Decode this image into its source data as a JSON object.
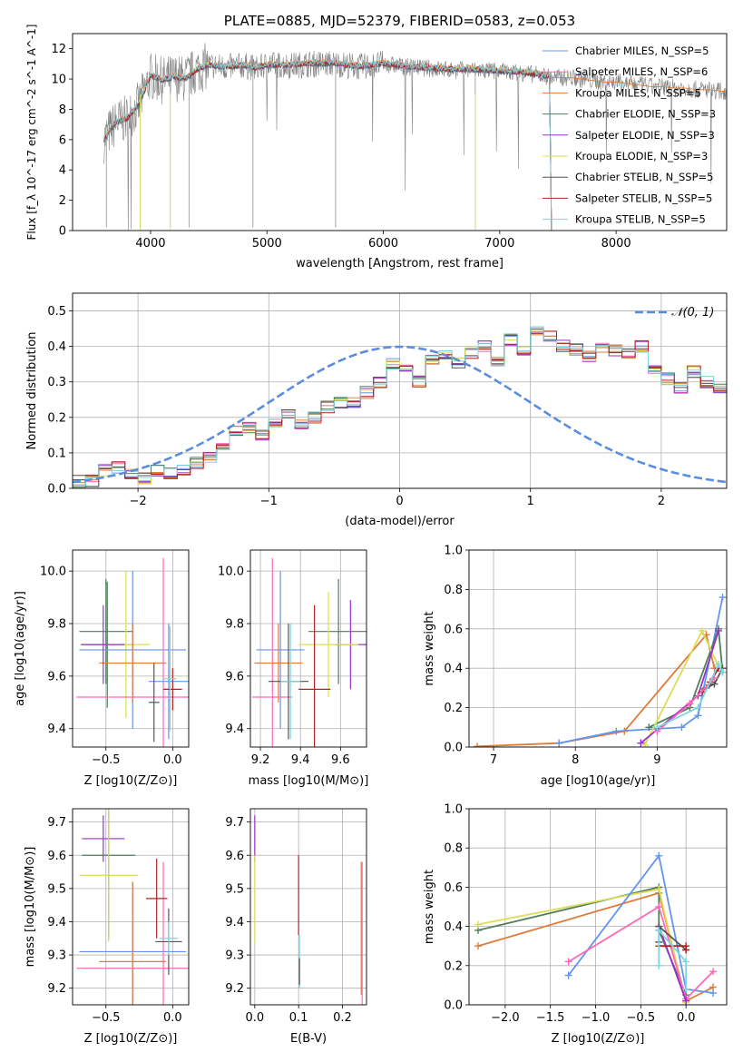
{
  "chart_data": [
    {
      "type": "line",
      "title": "PLATE=0885, MJD=52379, FIBERID=0583, z=0.053",
      "xlabel": "wavelength [Angstrom, rest frame]",
      "ylabel": "Flux [f_λ 10^-17 erg cm^-2 s^-1 A^-1]",
      "xlim": [
        3330,
        8950
      ],
      "ylim": [
        0,
        13
      ],
      "xticks": [
        "4000",
        "5000",
        "6000",
        "7000",
        "8000"
      ],
      "yticks": [
        "0",
        "2",
        "4",
        "6",
        "8",
        "10",
        "12"
      ],
      "legend_position": "upper right",
      "legend": [
        {
          "label": "Chabrier MILES, N_SSP=5",
          "color": "#6495ed"
        },
        {
          "label": "Salpeter MILES, N_SSP=6",
          "color": "#ff69b4"
        },
        {
          "label": "Kroupa MILES, N_SSP=5",
          "color": "#e07b39"
        },
        {
          "label": "Chabrier ELODIE, N_SSP=3",
          "color": "#4f7f5b"
        },
        {
          "label": "Salpeter ELODIE, N_SSP=3",
          "color": "#9932cc"
        },
        {
          "label": "Kroupa ELODIE, N_SSP=3",
          "color": "#dcdc5a"
        },
        {
          "label": "Chabrier STELIB, N_SSP=5",
          "color": "#555555"
        },
        {
          "label": "Salpeter STELIB, N_SSP=5",
          "color": "#b22222"
        },
        {
          "label": "Kroupa STELIB, N_SSP=5",
          "color": "#7ed6e0"
        }
      ],
      "data_color": "#808080",
      "model_continuum": {
        "x": [
          3600,
          3700,
          3800,
          3900,
          4000,
          4100,
          4200,
          4300,
          4400,
          4500,
          4600,
          4700,
          4800,
          4900,
          5000,
          5200,
          5400,
          5600,
          5800,
          6000,
          6200,
          6400,
          6600,
          6800,
          7000,
          7200,
          7300,
          7400,
          7450,
          7500,
          7600,
          7700,
          7800,
          7900,
          8000,
          8100,
          8200,
          8300,
          8400,
          8500,
          8600,
          8700,
          8800,
          8900
        ],
        "y": [
          6.0,
          7.1,
          7.4,
          8.3,
          10.2,
          9.9,
          10.1,
          10.0,
          10.6,
          10.9,
          10.8,
          10.8,
          10.9,
          10.7,
          10.9,
          10.9,
          11.0,
          11.0,
          10.8,
          11.0,
          10.8,
          10.7,
          10.6,
          10.6,
          10.5,
          10.4,
          10.3,
          10.2,
          10.1,
          10.1,
          10.1,
          10.0,
          9.9,
          9.8,
          9.8,
          9.7,
          9.6,
          9.5,
          9.5,
          9.4,
          9.4,
          9.3,
          9.3,
          9.2
        ]
      },
      "model_end_wavelength": 7430
    },
    {
      "type": "line",
      "xlabel": "(data-model)/error",
      "ylabel": "Normed distribution",
      "xlim": [
        -2.5,
        2.5
      ],
      "ylim": [
        0,
        0.55
      ],
      "xticks": [
        "−2",
        "−1",
        "0",
        "1",
        "2"
      ],
      "yticks": [
        "0.0",
        "0.1",
        "0.2",
        "0.3",
        "0.4",
        "0.5"
      ],
      "grid": true,
      "legend": [
        {
          "label": "𝒩(0, 1)",
          "color": "#5b8ddf",
          "style": "dashed"
        }
      ],
      "legend_position": "upper right",
      "bin_width": 0.1,
      "histogram_template": [
        0.02,
        0.02,
        0.05,
        0.06,
        0.04,
        0.03,
        0.05,
        0.04,
        0.05,
        0.07,
        0.09,
        0.12,
        0.16,
        0.17,
        0.15,
        0.18,
        0.21,
        0.18,
        0.2,
        0.23,
        0.24,
        0.24,
        0.27,
        0.3,
        0.35,
        0.34,
        0.3,
        0.36,
        0.38,
        0.35,
        0.38,
        0.4,
        0.36,
        0.42,
        0.39,
        0.45,
        0.43,
        0.4,
        0.39,
        0.37,
        0.4,
        0.39,
        0.38,
        0.4,
        0.34,
        0.31,
        0.28,
        0.33,
        0.3,
        0.28,
        0.27,
        0.24,
        0.22,
        0.2,
        0.17,
        0.16,
        0.15,
        0.13,
        0.11,
        0.09,
        0.1,
        0.09,
        0.08,
        0.07,
        0.08,
        0.09,
        0.06,
        0.05,
        0.05,
        0.04,
        0.04,
        0.03,
        0.03,
        0.03,
        0.04
      ]
    },
    {
      "type": "scatter",
      "panel": "age_vs_Z",
      "xlabel": "Z [log10(Z/Z⊙)]",
      "ylabel": "age  [log10(age/yr)]",
      "xlim": [
        -0.75,
        0.12
      ],
      "ylim": [
        9.33,
        10.08
      ],
      "xticks": [
        "−0.5",
        "0.0"
      ],
      "yticks": [
        "9.4",
        "9.6",
        "9.8",
        "10.0"
      ],
      "grid": true,
      "points": [
        {
          "x": -0.49,
          "y": 9.72,
          "xerr": 0.2,
          "yerr": 0.24,
          "color": "#4f7f5b"
        },
        {
          "x": -0.5,
          "y": 9.77,
          "xerr": 0.2,
          "yerr": 0.2,
          "color": "#4f7f5b"
        },
        {
          "x": -0.35,
          "y": 9.72,
          "xerr": 0.18,
          "yerr": 0.28,
          "color": "#dcdc5a"
        },
        {
          "x": -0.3,
          "y": 9.7,
          "xerr": 0.4,
          "yerr": 0.3,
          "color": "#6495ed"
        },
        {
          "x": -0.3,
          "y": 9.65,
          "xerr": 0.25,
          "yerr": 0.15,
          "color": "#e07b39"
        },
        {
          "x": -0.07,
          "y": 9.52,
          "xerr": 0.65,
          "yerr": 0.53,
          "color": "#ff69b4"
        },
        {
          "x": -0.03,
          "y": 9.58,
          "xerr": 0.15,
          "yerr": 0.22,
          "color": "#6495ed"
        },
        {
          "x": 0.0,
          "y": 9.55,
          "xerr": 0.07,
          "yerr": 0.08,
          "color": "#b22222"
        },
        {
          "x": -0.14,
          "y": 9.5,
          "xerr": 0.04,
          "yerr": 0.15,
          "color": "#555555"
        },
        {
          "x": -0.02,
          "y": 9.59,
          "xerr": 0.05,
          "yerr": 0.2,
          "color": "#7ed6e0"
        },
        {
          "x": -0.52,
          "y": 9.72,
          "xerr": 0.16,
          "yerr": 0.15,
          "color": "#9932cc"
        }
      ]
    },
    {
      "type": "scatter",
      "panel": "age_vs_mass",
      "xlabel": "mass [log10(M/M⊙)]",
      "ylabel": "",
      "xlim": [
        9.15,
        9.73
      ],
      "ylim": [
        9.33,
        10.08
      ],
      "xticks": [
        "9.2",
        "9.4",
        "9.6"
      ],
      "yticks": [
        "9.4",
        "9.6",
        "9.8",
        "10.0"
      ],
      "grid": true,
      "points": [
        {
          "x": 9.3,
          "y": 9.7,
          "xerr": 0.12,
          "yerr": 0.3,
          "color": "#6495ed"
        },
        {
          "x": 9.26,
          "y": 9.52,
          "xerr": 0.1,
          "yerr": 0.53,
          "color": "#ff69b4"
        },
        {
          "x": 9.29,
          "y": 9.65,
          "xerr": 0.12,
          "yerr": 0.15,
          "color": "#e07b39"
        },
        {
          "x": 9.59,
          "y": 9.77,
          "xerr": 0.15,
          "yerr": 0.2,
          "color": "#4f7f5b"
        },
        {
          "x": 9.65,
          "y": 9.72,
          "xerr": 0.08,
          "yerr": 0.17,
          "color": "#9932cc"
        },
        {
          "x": 9.54,
          "y": 9.72,
          "xerr": 0.15,
          "yerr": 0.2,
          "color": "#dcdc5a"
        },
        {
          "x": 9.34,
          "y": 9.58,
          "xerr": 0.1,
          "yerr": 0.22,
          "color": "#555555"
        },
        {
          "x": 9.47,
          "y": 9.55,
          "xerr": 0.08,
          "yerr": 0.32,
          "color": "#b22222"
        },
        {
          "x": 9.35,
          "y": 9.58,
          "xerr": 0.05,
          "yerr": 0.22,
          "color": "#7ed6e0"
        }
      ]
    },
    {
      "type": "line",
      "panel": "weight_vs_age",
      "xlabel": "age  [log10(age/yr)]",
      "ylabel": "mass weight",
      "xlim": [
        6.7,
        9.85
      ],
      "ylim": [
        0,
        1.0
      ],
      "xticks": [
        "7",
        "8",
        "9"
      ],
      "yticks": [
        "0.0",
        "0.2",
        "0.4",
        "0.6",
        "0.8",
        "1.0"
      ],
      "grid": true,
      "series": [
        {
          "color": "#e07b39",
          "x": [
            6.8,
            7.8,
            8.6,
            9.6,
            9.7
          ],
          "y": [
            0.003,
            0.02,
            0.08,
            0.57,
            0.4
          ]
        },
        {
          "color": "#6495ed",
          "x": [
            7.8,
            8.5,
            9.3,
            9.5,
            9.8
          ],
          "y": [
            0.02,
            0.08,
            0.1,
            0.16,
            0.76
          ]
        },
        {
          "color": "#4f7f5b",
          "x": [
            8.9,
            9.4,
            9.75,
            9.8
          ],
          "y": [
            0.1,
            0.2,
            0.6,
            0.38
          ]
        },
        {
          "color": "#dcdc5a",
          "x": [
            8.85,
            9.55,
            9.75
          ],
          "y": [
            0.01,
            0.59,
            0.41
          ]
        },
        {
          "color": "#9932cc",
          "x": [
            8.8,
            9.5,
            9.75
          ],
          "y": [
            0.02,
            0.26,
            0.59
          ]
        },
        {
          "color": "#555555",
          "x": [
            9.6,
            9.7,
            9.8
          ],
          "y": [
            0.3,
            0.32,
            0.4
          ]
        },
        {
          "color": "#b22222",
          "x": [
            9.55,
            9.65,
            9.75
          ],
          "y": [
            0.28,
            0.33,
            0.4
          ]
        },
        {
          "color": "#ff69b4",
          "x": [
            9.0,
            9.4,
            9.7
          ],
          "y": [
            0.08,
            0.22,
            0.35
          ]
        },
        {
          "color": "#7ed6e0",
          "x": [
            9.0,
            9.5,
            9.75,
            9.8
          ],
          "y": [
            0.1,
            0.2,
            0.42,
            0.38
          ]
        }
      ]
    },
    {
      "type": "scatter",
      "panel": "mass_vs_Z",
      "xlabel": "Z [log10(Z/Z⊙)]",
      "ylabel": "mass [log10(M/M⊙)]",
      "xlim": [
        -0.75,
        0.12
      ],
      "ylim": [
        9.15,
        9.74
      ],
      "xticks": [
        "−0.5",
        "0.0"
      ],
      "yticks": [
        "9.2",
        "9.3",
        "9.4",
        "9.5",
        "9.6",
        "9.7"
      ],
      "grid": true,
      "points": [
        {
          "x": -0.52,
          "y": 9.65,
          "xerr": 0.16,
          "yerr": 0.07,
          "color": "#9932cc"
        },
        {
          "x": -0.48,
          "y": 9.6,
          "xerr": 0.2,
          "yerr": 0.25,
          "color": "#4f7f5b"
        },
        {
          "x": -0.48,
          "y": 9.54,
          "xerr": 0.22,
          "yerr": 0.2,
          "color": "#dcdc5a"
        },
        {
          "x": -0.3,
          "y": 9.31,
          "xerr": 0.4,
          "yerr": 0.21,
          "color": "#6495ed"
        },
        {
          "x": -0.3,
          "y": 9.28,
          "xerr": 0.25,
          "yerr": 0.24,
          "color": "#e07b39"
        },
        {
          "x": -0.07,
          "y": 9.26,
          "xerr": 0.65,
          "yerr": 0.32,
          "color": "#ff69b4"
        },
        {
          "x": -0.12,
          "y": 9.47,
          "xerr": 0.08,
          "yerr": 0.12,
          "color": "#b22222"
        },
        {
          "x": -0.03,
          "y": 9.34,
          "xerr": 0.1,
          "yerr": 0.1,
          "color": "#555555"
        },
        {
          "x": -0.03,
          "y": 9.35,
          "xerr": 0.07,
          "yerr": 0.05,
          "color": "#7ed6e0"
        }
      ]
    },
    {
      "type": "scatter",
      "panel": "mass_vs_EBV",
      "xlabel": "E(B-V)",
      "ylabel": "",
      "xlim": [
        -0.01,
        0.255
      ],
      "ylim": [
        9.15,
        9.74
      ],
      "xticks": [
        "0.0",
        "0.1",
        "0.2"
      ],
      "yticks": [
        "9.2",
        "9.3",
        "9.4",
        "9.5",
        "9.6",
        "9.7"
      ],
      "grid": true,
      "points": [
        {
          "x": 0.0,
          "y": 9.65,
          "xerr": 0.001,
          "yerr": 0.07,
          "color": "#9932cc"
        },
        {
          "x": 0.0,
          "y": 9.47,
          "xerr": 0.001,
          "yerr": 0.13,
          "color": "#dcdc5a"
        },
        {
          "x": 0.1,
          "y": 9.48,
          "xerr": 0.001,
          "yerr": 0.12,
          "color": "#b22222"
        },
        {
          "x": 0.102,
          "y": 9.28,
          "xerr": 0.001,
          "yerr": 0.08,
          "color": "#7ed6e0"
        },
        {
          "x": 0.102,
          "y": 9.25,
          "xerr": 0.001,
          "yerr": 0.04,
          "color": "#555555"
        },
        {
          "x": 0.243,
          "y": 9.38,
          "xerr": 0.001,
          "yerr": 0.2,
          "color": "#e07b39"
        },
        {
          "x": 0.245,
          "y": 9.35,
          "xerr": 0.001,
          "yerr": 0.23,
          "color": "#ff69b4"
        }
      ]
    },
    {
      "type": "line",
      "panel": "weight_vs_Z",
      "xlabel": "Z [log10(Z/Z⊙)]",
      "ylabel": "mass weight",
      "xlim": [
        -2.4,
        0.45
      ],
      "ylim": [
        0,
        1.0
      ],
      "xticks": [
        "−2.0",
        "−1.5",
        "−1.0",
        "−0.5",
        "0.0"
      ],
      "yticks": [
        "0.0",
        "0.2",
        "0.4",
        "0.6",
        "0.8",
        "1.0"
      ],
      "grid": true,
      "series": [
        {
          "color": "#e07b39",
          "x": [
            -2.3,
            -0.3,
            0.0,
            0.3
          ],
          "y": [
            0.3,
            0.57,
            0.02,
            0.09
          ]
        },
        {
          "color": "#4f7f5b",
          "x": [
            -2.3,
            -0.3,
            -0.3,
            0.0
          ],
          "y": [
            0.38,
            0.6,
            0.38,
            0.05
          ]
        },
        {
          "color": "#dcdc5a",
          "x": [
            -2.3,
            -0.3,
            0.0
          ],
          "y": [
            0.41,
            0.59,
            0.01
          ]
        },
        {
          "color": "#6495ed",
          "x": [
            -1.3,
            -0.3,
            0.0,
            0.3
          ],
          "y": [
            0.15,
            0.76,
            0.08,
            0.06
          ]
        },
        {
          "color": "#ff69b4",
          "x": [
            -1.3,
            -0.3,
            0.0,
            0.3
          ],
          "y": [
            0.22,
            0.5,
            0.03,
            0.17
          ]
        },
        {
          "color": "#9932cc",
          "x": [
            -0.3,
            0.0
          ],
          "y": [
            0.4,
            0.02
          ]
        },
        {
          "color": "#555555",
          "x": [
            -0.3,
            -0.3,
            0.0
          ],
          "y": [
            0.32,
            0.4,
            0.28
          ]
        },
        {
          "color": "#b22222",
          "x": [
            -0.3,
            0.0,
            0.0
          ],
          "y": [
            0.3,
            0.3,
            0.28
          ]
        },
        {
          "color": "#7ed6e0",
          "x": [
            -0.3,
            -0.3,
            0.0,
            0.0
          ],
          "y": [
            0.2,
            0.38,
            0.22,
            0.08
          ]
        }
      ]
    }
  ]
}
